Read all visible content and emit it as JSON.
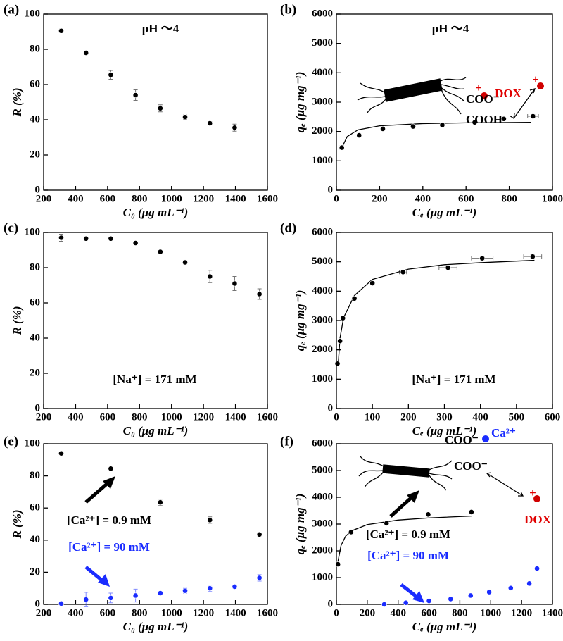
{
  "chart_data": [
    {
      "type": "scatter",
      "panel_label": "(a)",
      "xlabel": "C₀ (μg mL⁻¹)",
      "ylabel": "R (%)",
      "xlim": [
        200,
        1600
      ],
      "xticks": [
        200,
        400,
        600,
        800,
        1000,
        1200,
        1400,
        1600
      ],
      "ylim": [
        0,
        100
      ],
      "yticks": [
        0,
        20,
        40,
        60,
        80,
        100
      ],
      "color": "#000000",
      "x": [
        310,
        465,
        620,
        775,
        930,
        1085,
        1240,
        1395
      ],
      "values": [
        90.5,
        78,
        65.5,
        54,
        46.5,
        41.5,
        38,
        35.5
      ],
      "errors": [
        1,
        0.8,
        2.5,
        3,
        2,
        1.2,
        1,
        2
      ],
      "annotations": [
        {
          "text": "pH ～4",
          "color": "#000000"
        }
      ]
    },
    {
      "type": "scatter",
      "panel_label": "(b)",
      "xlabel": "Cₑ (μg mL⁻¹)",
      "ylabel": "qₑ (μg mg⁻¹)",
      "xlim": [
        0,
        1000
      ],
      "xticks": [
        0,
        200,
        400,
        600,
        800,
        1000
      ],
      "ylim": [
        0,
        6000
      ],
      "yticks": [
        0,
        1000,
        2000,
        3000,
        4000,
        5000,
        6000
      ],
      "color": "#000000",
      "x": [
        25,
        105,
        215,
        355,
        490,
        640,
        775,
        910
      ],
      "values": [
        1450,
        1870,
        2090,
        2170,
        2220,
        2310,
        2430,
        2520
      ],
      "errors": [
        60,
        40,
        40,
        50,
        40,
        40,
        50,
        60
      ],
      "xerrors": [
        5,
        5,
        5,
        8,
        5,
        5,
        5,
        25
      ],
      "fit": {
        "x": [
          20,
          50,
          100,
          200,
          400,
          600,
          900
        ],
        "values": [
          1371,
          1828,
          2056,
          2193,
          2269,
          2295,
          2313
        ]
      },
      "annotations": [
        {
          "text": "pH ～4",
          "color": "#000000"
        },
        {
          "text": "COO⁻",
          "color": "#000000"
        },
        {
          "text": "+",
          "color": "#e00000"
        },
        {
          "text": "DOX",
          "color": "#e00000"
        },
        {
          "text": "COOH",
          "color": "#000000"
        },
        {
          "text": "+",
          "color": "#e00000"
        }
      ]
    },
    {
      "type": "scatter",
      "panel_label": "(c)",
      "xlabel": "C₀ (μg mL⁻¹)",
      "ylabel": "R (%)",
      "xlim": [
        200,
        1600
      ],
      "xticks": [
        200,
        400,
        600,
        800,
        1000,
        1200,
        1400,
        1600
      ],
      "ylim": [
        0,
        100
      ],
      "yticks": [
        0,
        20,
        40,
        60,
        80,
        100
      ],
      "color": "#000000",
      "x": [
        310,
        465,
        620,
        775,
        930,
        1085,
        1240,
        1395,
        1550
      ],
      "values": [
        97,
        96.5,
        96.5,
        94,
        89,
        83,
        75,
        71,
        65
      ],
      "errors": [
        2,
        0.5,
        0.5,
        0.5,
        0.5,
        1,
        3.5,
        4,
        3
      ],
      "annotations": [
        {
          "text": "[Na⁺] = 171 mM",
          "color": "#000000"
        }
      ]
    },
    {
      "type": "scatter",
      "panel_label": "(d)",
      "xlabel": "Cₑ (μg mL⁻¹)",
      "ylabel": "qₑ (μg mg⁻¹)",
      "xlim": [
        0,
        600
      ],
      "xticks": [
        0,
        100,
        200,
        300,
        400,
        500,
        600
      ],
      "ylim": [
        0,
        6000
      ],
      "yticks": [
        0,
        1000,
        2000,
        3000,
        4000,
        5000,
        6000
      ],
      "color": "#000000",
      "x": [
        3,
        10,
        18,
        50,
        100,
        185,
        310,
        405,
        545
      ],
      "values": [
        1530,
        2300,
        3080,
        3750,
        4270,
        4650,
        4800,
        5120,
        5180
      ],
      "errors": [
        40,
        40,
        40,
        40,
        40,
        50,
        50,
        60,
        60
      ],
      "xerrors": [
        1,
        1,
        1,
        2,
        3,
        10,
        25,
        30,
        25
      ],
      "fit": {
        "x": [
          5,
          10,
          20,
          50,
          100,
          200,
          300,
          400,
          550
        ],
        "values": [
          1500,
          2400,
          3100,
          3850,
          4400,
          4750,
          4900,
          4970,
          5050
        ]
      },
      "annotations": [
        {
          "text": "[Na⁺] = 171 mM",
          "color": "#000000"
        }
      ]
    },
    {
      "type": "scatter",
      "panel_label": "(e)",
      "xlabel": "C₀ (μg mL⁻¹)",
      "ylabel": "R (%)",
      "xlim": [
        200,
        1600
      ],
      "xticks": [
        200,
        400,
        600,
        800,
        1000,
        1200,
        1400,
        1600
      ],
      "ylim": [
        0,
        100
      ],
      "yticks": [
        0,
        20,
        40,
        60,
        80,
        100
      ],
      "series": [
        {
          "name": "[Ca²⁺] = 0.9 mM",
          "color": "#000000",
          "x": [
            310,
            620,
            930,
            1240,
            1550
          ],
          "values": [
            94,
            84.5,
            63.5,
            52.5,
            43.5
          ],
          "errors": [
            0.5,
            0.5,
            2,
            2,
            1
          ]
        },
        {
          "name": "[Ca²⁺] = 90 mM",
          "color": "#1a2cff",
          "x": [
            310,
            465,
            620,
            775,
            930,
            1085,
            1240,
            1395,
            1550
          ],
          "values": [
            0.5,
            3,
            4,
            5.5,
            7,
            8.5,
            10,
            11,
            16.5
          ],
          "errors": [
            0,
            4.5,
            3,
            4,
            1,
            1.5,
            2,
            1,
            2
          ]
        }
      ]
    },
    {
      "type": "scatter",
      "panel_label": "(f)",
      "xlabel": "Cₑ (μg mL⁻¹)",
      "ylabel": "qₑ (μg mg⁻¹)",
      "xlim": [
        0,
        1400
      ],
      "xticks": [
        0,
        200,
        400,
        600,
        800,
        1000,
        1200,
        1400
      ],
      "ylim": [
        0,
        6000
      ],
      "yticks": [
        0,
        1000,
        2000,
        3000,
        4000,
        5000,
        6000
      ],
      "series": [
        {
          "name": "[Ca²⁺] = 0.9 mM",
          "color": "#000000",
          "x": [
            10,
            95,
            325,
            595,
            875
          ],
          "values": [
            1500,
            2700,
            3030,
            3360,
            3450
          ],
          "errors": [
            40,
            40,
            40,
            40,
            40
          ],
          "fit": {
            "x": [
              10,
              30,
              60,
              100,
              200,
              400,
              600,
              875
            ],
            "values": [
              1600,
              2200,
              2550,
              2750,
              2980,
              3150,
              3230,
              3300
            ]
          }
        },
        {
          "name": "[Ca²⁺] = 90 mM",
          "color": "#1a2cff",
          "x": [
            310,
            450,
            600,
            740,
            870,
            990,
            1130,
            1250,
            1300
          ],
          "values": [
            0,
            60,
            130,
            200,
            330,
            460,
            610,
            780,
            1340
          ],
          "errors": [
            0,
            20,
            20,
            20,
            20,
            20,
            30,
            30,
            50
          ]
        }
      ],
      "annotations": [
        {
          "text": "COO⁻",
          "color": "#000000"
        },
        {
          "text": "Ca²⁺",
          "color": "#1a2cff"
        },
        {
          "text": "COO⁻",
          "color": "#000000"
        },
        {
          "text": "+",
          "color": "#e00000"
        },
        {
          "text": "DOX",
          "color": "#e00000"
        }
      ]
    }
  ]
}
